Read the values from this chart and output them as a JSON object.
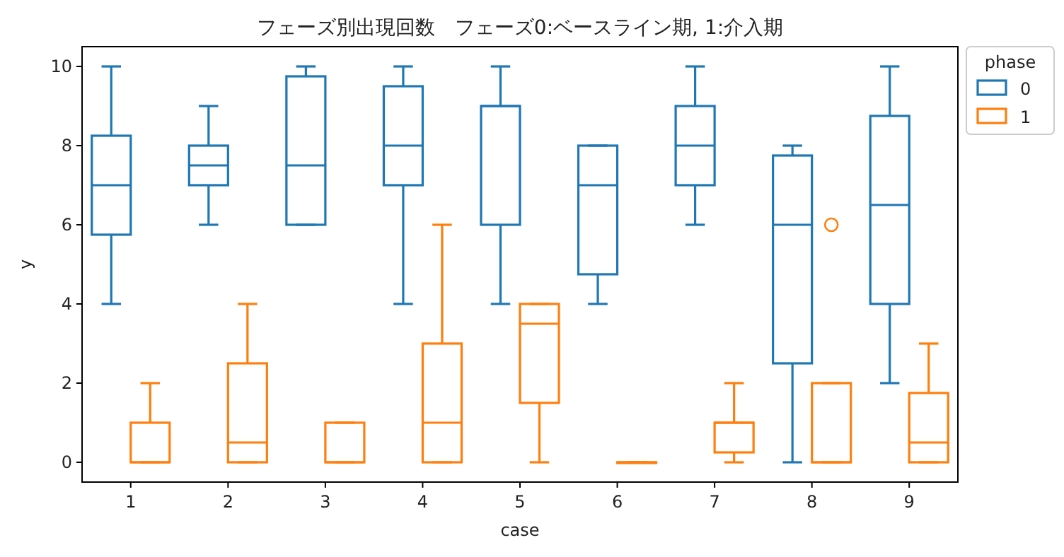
{
  "chart_data": {
    "type": "box",
    "title": "フェーズ別出現回数　フェーズ0:ベースライン期, 1:介入期",
    "xlabel": "case",
    "ylabel": "y",
    "legend_title": "phase",
    "categories": [
      "1",
      "2",
      "3",
      "4",
      "5",
      "6",
      "7",
      "8",
      "9"
    ],
    "series": [
      {
        "name": "0",
        "color": "#1f77b4",
        "boxes": [
          {
            "low": 4,
            "q1": 5.75,
            "median": 7,
            "q3": 8.25,
            "high": 10
          },
          {
            "low": 6,
            "q1": 7,
            "median": 7.5,
            "q3": 8,
            "high": 9
          },
          {
            "low": 6,
            "q1": 6,
            "median": 7.5,
            "q3": 9.75,
            "high": 10
          },
          {
            "low": 4,
            "q1": 7,
            "median": 8,
            "q3": 9.5,
            "high": 10
          },
          {
            "low": 4,
            "q1": 6,
            "median": 9,
            "q3": 9,
            "high": 10
          },
          {
            "low": 4,
            "q1": 4.75,
            "median": 7,
            "q3": 8,
            "high": 8
          },
          {
            "low": 6,
            "q1": 7,
            "median": 8,
            "q3": 9,
            "high": 10
          },
          {
            "low": 0,
            "q1": 2.5,
            "median": 6,
            "q3": 7.75,
            "high": 8
          },
          {
            "low": 2,
            "q1": 4,
            "median": 6.5,
            "q3": 8.75,
            "high": 10
          }
        ]
      },
      {
        "name": "1",
        "color": "#ff7f0e",
        "boxes": [
          {
            "low": 0,
            "q1": 0,
            "median": 0,
            "q3": 1,
            "high": 2
          },
          {
            "low": 0,
            "q1": 0,
            "median": 0.5,
            "q3": 2.5,
            "high": 4
          },
          {
            "low": 0,
            "q1": 0,
            "median": 0,
            "q3": 1,
            "high": 1
          },
          {
            "low": 0,
            "q1": 0,
            "median": 1,
            "q3": 3,
            "high": 6
          },
          {
            "low": 0,
            "q1": 1.5,
            "median": 3.5,
            "q3": 4,
            "high": 4
          },
          {
            "low": 0,
            "q1": 0,
            "median": 0,
            "q3": 0,
            "high": 0
          },
          {
            "low": 0,
            "q1": 0.25,
            "median": 1,
            "q3": 1,
            "high": 2
          },
          {
            "low": 0,
            "q1": 0,
            "median": 0,
            "q3": 2,
            "high": 2,
            "outliers": [
              6
            ]
          },
          {
            "low": 0,
            "q1": 0,
            "median": 0.5,
            "q3": 1.75,
            "high": 3
          }
        ]
      }
    ],
    "ylim": [
      -0.5,
      10.5
    ],
    "yticks": [
      0,
      2,
      4,
      6,
      8,
      10
    ],
    "legend": "top right",
    "grid": false
  }
}
